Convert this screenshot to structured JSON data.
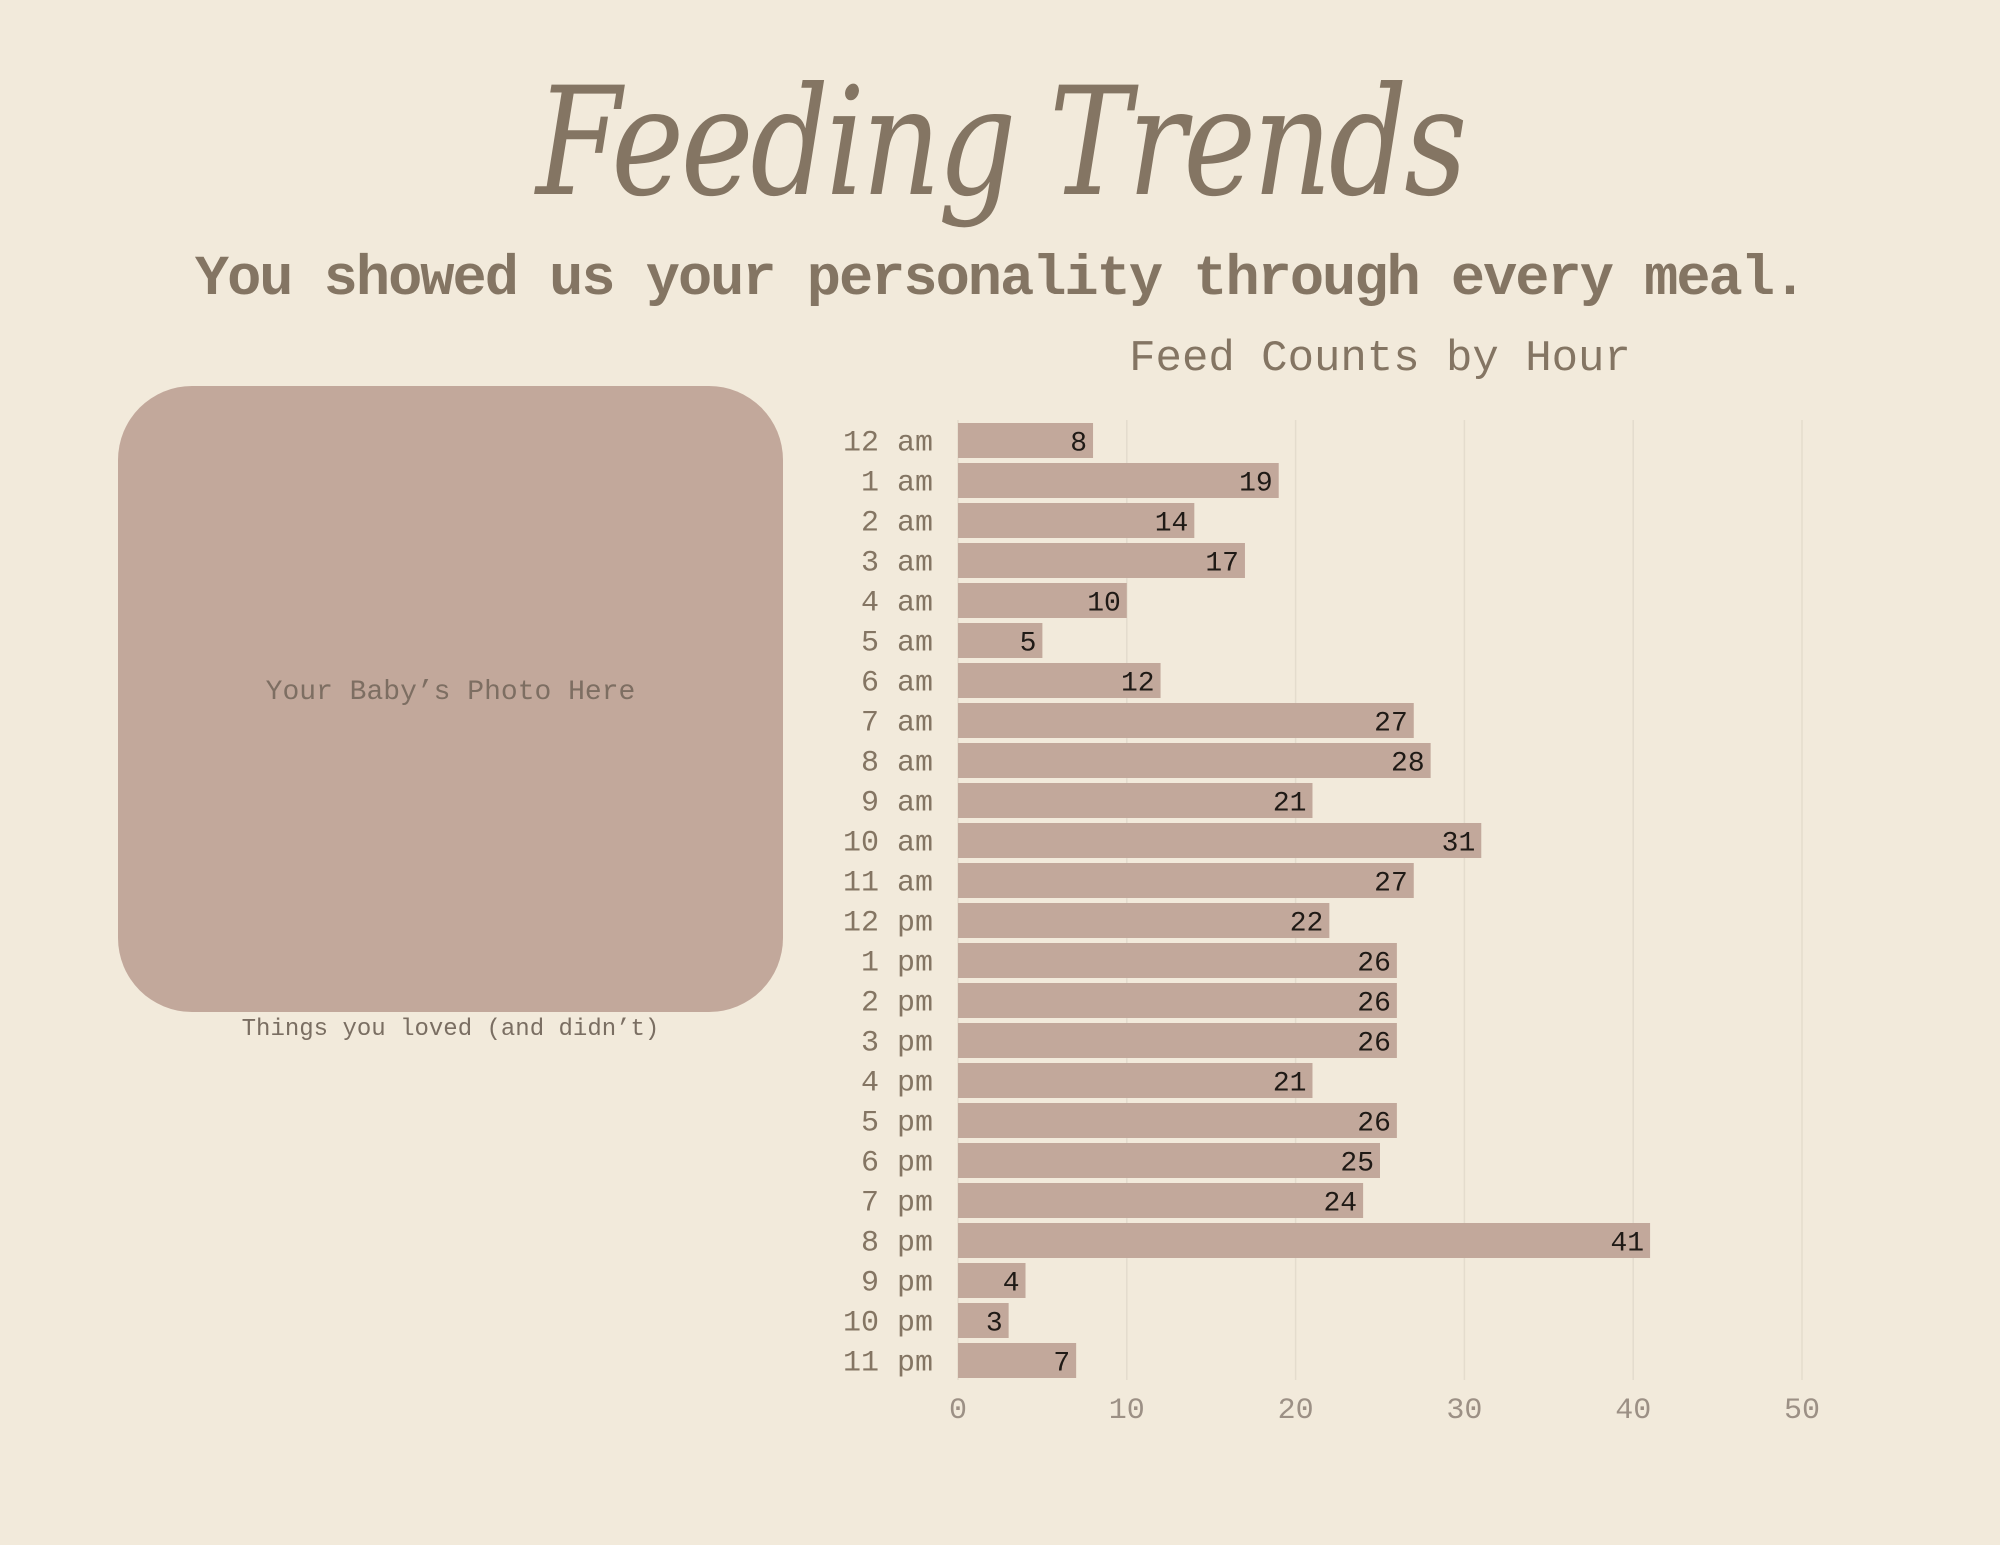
{
  "page": {
    "title": "Feeding Trends",
    "subtitle": "You showed us your personality through every meal.",
    "photo_placeholder": "Your Baby’s Photo Here",
    "photo_caption": "Things you loved (and didn’t)"
  },
  "colors": {
    "background": "#f2eadb",
    "bar": "#c2a89b",
    "text": "#847563"
  },
  "chart_data": {
    "type": "bar",
    "orientation": "horizontal",
    "title": "Feed Counts by Hour",
    "categories": [
      "12 am",
      "1 am",
      "2 am",
      "3 am",
      "4 am",
      "5 am",
      "6 am",
      "7 am",
      "8 am",
      "9 am",
      "10 am",
      "11 am",
      "12 pm",
      "1 pm",
      "2 pm",
      "3 pm",
      "4 pm",
      "5 pm",
      "6 pm",
      "7 pm",
      "8 pm",
      "9 pm",
      "10 pm",
      "11 pm"
    ],
    "values": [
      8,
      19,
      14,
      17,
      10,
      5,
      12,
      27,
      28,
      21,
      31,
      27,
      22,
      26,
      26,
      26,
      21,
      26,
      25,
      24,
      41,
      4,
      3,
      7
    ],
    "xlim": [
      0,
      50
    ],
    "xticks": [
      0,
      10,
      20,
      30,
      40,
      50
    ],
    "grid": "vertical",
    "data_labels": true
  }
}
